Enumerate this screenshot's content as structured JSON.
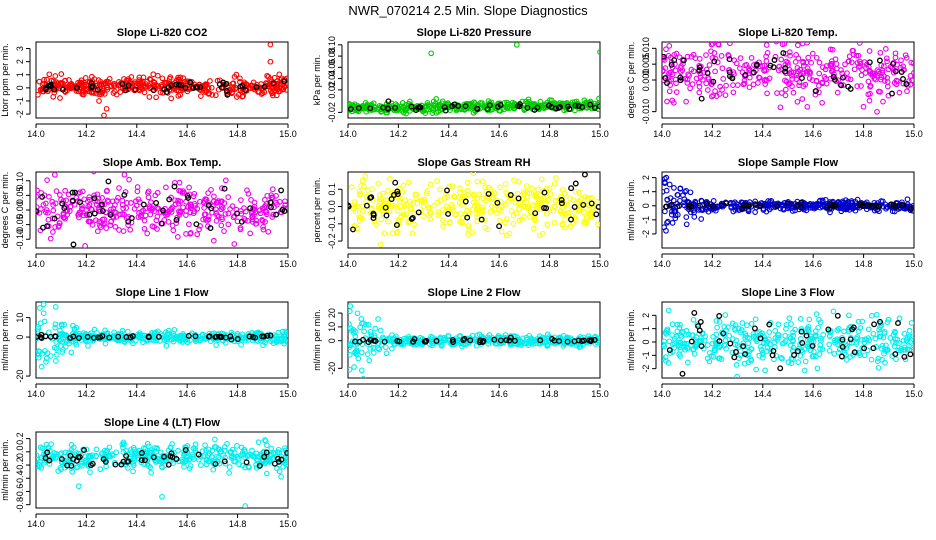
{
  "figure_title": "NWR_070214  2.5 Min. Slope Diagnostics",
  "chart_data": [
    {
      "type": "scatter",
      "title": "Slope Li-820 CO2",
      "ylabel": "Ltorr ppm per min.",
      "xlim": [
        14.0,
        15.0
      ],
      "ylim": [
        -2.3,
        3.5
      ],
      "xticks": [
        "14.0",
        "14.2",
        "14.4",
        "14.6",
        "14.8",
        "15.0"
      ],
      "yticks": [
        {
          "v": -2,
          "label": "-2"
        },
        {
          "v": -1,
          "label": "-1"
        },
        {
          "v": 0,
          "label": "0"
        },
        {
          "v": 1,
          "label": "1"
        },
        {
          "v": 2,
          "label": "2"
        },
        {
          "v": 3,
          "label": "3"
        }
      ],
      "series": [
        {
          "name": "all",
          "color": "#ff0000",
          "n": 420,
          "center": 0.1,
          "spread": 0.35,
          "outliers": [
            [
              14.93,
              3.3
            ],
            [
              14.93,
              2.0
            ],
            [
              14.27,
              -2.1
            ],
            [
              14.28,
              -1.6
            ],
            [
              14.25,
              -1.0
            ],
            [
              14.45,
              -0.7
            ]
          ]
        },
        {
          "name": "selected",
          "color": "#000000",
          "n": 45,
          "center": 0.05,
          "spread": 0.2,
          "outliers": []
        }
      ]
    },
    {
      "type": "scatter",
      "title": "Slope Li-820 Pressure",
      "ylabel": "kPa per min.",
      "xlim": [
        14.0,
        15.0
      ],
      "ylim": [
        -0.03,
        0.105
      ],
      "xticks": [
        "14.0",
        "14.2",
        "14.4",
        "14.6",
        "14.8",
        "15.0"
      ],
      "yticks": [
        {
          "v": -0.02,
          "label": "-0.02"
        },
        {
          "v": 0.02,
          "label": "0.02"
        },
        {
          "v": 0.04,
          "label": "0.04"
        },
        {
          "v": 0.06,
          "label": "0.06"
        },
        {
          "v": 0.08,
          "label": "0.08"
        },
        {
          "v": 0.1,
          "label": "0.10"
        }
      ],
      "series": [
        {
          "name": "all",
          "color": "#00cc00",
          "n": 420,
          "center": -0.013,
          "spread": 0.004,
          "trend": 0.006,
          "outliers": [
            [
              14.33,
              0.085
            ],
            [
              14.67,
              0.1
            ],
            [
              15.0,
              0.087
            ],
            [
              14.5,
              -0.002
            ]
          ]
        },
        {
          "name": "selected",
          "color": "#000000",
          "n": 45,
          "center": -0.014,
          "spread": 0.003,
          "trend": 0.006,
          "outliers": []
        }
      ]
    },
    {
      "type": "scatter",
      "title": "Slope Li-820 Temp.",
      "ylabel": "degrees C per min.",
      "xlim": [
        14.0,
        15.0
      ],
      "ylim": [
        -0.012,
        0.012
      ],
      "xticks": [
        "14.0",
        "14.2",
        "14.4",
        "14.6",
        "14.8",
        "15.0"
      ],
      "yticks": [
        {
          "v": -0.01,
          "label": "-0.010"
        },
        {
          "v": 0.0,
          "label": "0.000"
        },
        {
          "v": 0.005,
          "label": "0.005"
        },
        {
          "v": 0.01,
          "label": "0.010"
        }
      ],
      "series": [
        {
          "name": "all",
          "color": "#ee00ee",
          "n": 380,
          "center": 0.003,
          "spread": 0.0045,
          "outliers": []
        },
        {
          "name": "selected",
          "color": "#000000",
          "n": 45,
          "center": 0.003,
          "spread": 0.004,
          "outliers": []
        }
      ]
    },
    {
      "type": "scatter",
      "title": "Slope Amb. Box Temp.",
      "ylabel": "degrees C per min.",
      "xlim": [
        14.0,
        15.0
      ],
      "ylim": [
        -0.13,
        0.13
      ],
      "xticks": [
        "14.0",
        "14.2",
        "14.4",
        "14.6",
        "14.8",
        "15.0"
      ],
      "yticks": [
        {
          "v": -0.1,
          "label": "-0.10"
        },
        {
          "v": -0.05,
          "label": "-0.05"
        },
        {
          "v": 0.0,
          "label": "0.00"
        },
        {
          "v": 0.05,
          "label": "0.05"
        },
        {
          "v": 0.1,
          "label": "0.10"
        }
      ],
      "series": [
        {
          "name": "all",
          "color": "#ee00ee",
          "n": 380,
          "center": 0.0,
          "spread": 0.045,
          "outliers": []
        },
        {
          "name": "selected",
          "color": "#000000",
          "n": 45,
          "center": 0.0,
          "spread": 0.04,
          "outliers": []
        }
      ]
    },
    {
      "type": "scatter",
      "title": "Slope Gas Stream RH",
      "ylabel": "percent per min.",
      "xlim": [
        14.0,
        15.0
      ],
      "ylim": [
        -0.24,
        0.2
      ],
      "xticks": [
        "14.0",
        "14.2",
        "14.4",
        "14.6",
        "14.8",
        "15.0"
      ],
      "yticks": [
        {
          "v": -0.2,
          "label": "-0.2"
        },
        {
          "v": -0.1,
          "label": "-0.1"
        },
        {
          "v": 0.0,
          "label": "0.0"
        },
        {
          "v": 0.1,
          "label": "0.1"
        }
      ],
      "series": [
        {
          "name": "all",
          "color": "#ffff00",
          "n": 380,
          "center": 0.0,
          "spread": 0.07,
          "outliers": [
            [
              14.13,
              -0.22
            ]
          ]
        },
        {
          "name": "selected",
          "color": "#000000",
          "n": 45,
          "center": 0.0,
          "spread": 0.07,
          "outliers": []
        }
      ]
    },
    {
      "type": "scatter",
      "title": "Slope Sample Flow",
      "ylabel": "ml/min per min.",
      "xlim": [
        14.0,
        15.0
      ],
      "ylim": [
        -3.0,
        2.4
      ],
      "xticks": [
        "14.0",
        "14.2",
        "14.4",
        "14.6",
        "14.8",
        "15.0"
      ],
      "yticks": [
        {
          "v": -2,
          "label": "-2"
        },
        {
          "v": -1,
          "label": "-1"
        },
        {
          "v": 0,
          "label": "0"
        },
        {
          "v": 1,
          "label": "1"
        },
        {
          "v": 2,
          "label": "2"
        }
      ],
      "series": [
        {
          "name": "all",
          "color": "#0000cc",
          "n": 420,
          "center": 0.0,
          "spread": 0.18,
          "early": [
            14.0,
            14.2,
            1.1
          ],
          "outliers": []
        },
        {
          "name": "selected",
          "color": "#000000",
          "n": 45,
          "center": 0.0,
          "spread": 0.1,
          "outliers": []
        }
      ]
    },
    {
      "type": "scatter",
      "title": "Slope Line 1 Flow",
      "ylabel": "ml/min per min.",
      "xlim": [
        14.0,
        15.0
      ],
      "ylim": [
        -21,
        18
      ],
      "xticks": [
        "14.0",
        "14.2",
        "14.4",
        "14.6",
        "14.8",
        "15.0"
      ],
      "yticks": [
        {
          "v": -20,
          "label": "-20"
        },
        {
          "v": 0,
          "label": "0"
        },
        {
          "v": 10,
          "label": "10"
        }
      ],
      "series": [
        {
          "name": "all",
          "color": "#00eeee",
          "n": 420,
          "center": 0.0,
          "spread": 1.5,
          "early": [
            14.0,
            14.2,
            10
          ],
          "outliers": []
        },
        {
          "name": "selected",
          "color": "#000000",
          "n": 45,
          "center": 0.0,
          "spread": 0.5,
          "outliers": []
        }
      ]
    },
    {
      "type": "scatter",
      "title": "Slope Line 2 Flow",
      "ylabel": "ml/min per min.",
      "xlim": [
        14.0,
        15.0
      ],
      "ylim": [
        -27,
        28
      ],
      "xticks": [
        "14.0",
        "14.2",
        "14.4",
        "14.6",
        "14.8",
        "15.0"
      ],
      "yticks": [
        {
          "v": -20,
          "label": "-20"
        },
        {
          "v": 0,
          "label": "0"
        },
        {
          "v": 10,
          "label": "10"
        },
        {
          "v": 20,
          "label": "20"
        }
      ],
      "series": [
        {
          "name": "all",
          "color": "#00eeee",
          "n": 420,
          "center": 0.0,
          "spread": 1.8,
          "early": [
            14.0,
            14.2,
            14
          ],
          "outliers": []
        },
        {
          "name": "selected",
          "color": "#000000",
          "n": 45,
          "center": 0.0,
          "spread": 0.7,
          "outliers": []
        }
      ]
    },
    {
      "type": "scatter",
      "title": "Slope Line 3 Flow",
      "ylabel": "ml/min per min.",
      "xlim": [
        14.0,
        15.0
      ],
      "ylim": [
        -2.7,
        3.0
      ],
      "xticks": [
        "14.0",
        "14.2",
        "14.4",
        "14.6",
        "14.8",
        "15.0"
      ],
      "yticks": [
        {
          "v": -2,
          "label": "-2"
        },
        {
          "v": -1,
          "label": "-1"
        },
        {
          "v": 0,
          "label": "0"
        },
        {
          "v": 1,
          "label": "1"
        },
        {
          "v": 2,
          "label": "2"
        }
      ],
      "series": [
        {
          "name": "all",
          "color": "#00eeee",
          "n": 400,
          "center": 0.0,
          "spread": 0.85,
          "outliers": []
        },
        {
          "name": "selected",
          "color": "#000000",
          "n": 45,
          "center": 0.0,
          "spread": 0.9,
          "outliers": []
        }
      ]
    },
    {
      "type": "scatter",
      "title": "Slope Line 4 (LT) Flow",
      "ylabel": "ml/min per min.",
      "xlim": [
        14.0,
        15.0
      ],
      "ylim": [
        -0.85,
        0.3
      ],
      "xticks": [
        "14.0",
        "14.2",
        "14.4",
        "14.6",
        "14.8",
        "15.0"
      ],
      "yticks": [
        {
          "v": -0.8,
          "label": "-0.8"
        },
        {
          "v": -0.6,
          "label": "-0.6"
        },
        {
          "v": -0.4,
          "label": "-0.4"
        },
        {
          "v": -0.2,
          "label": "-0.2"
        },
        {
          "v": 0.0,
          "label": "0.0"
        },
        {
          "v": 0.2,
          "label": "0.2"
        }
      ],
      "series": [
        {
          "name": "all",
          "color": "#00eeee",
          "n": 380,
          "center": -0.08,
          "spread": 0.1,
          "outliers": [
            [
              14.5,
              -0.68
            ],
            [
              14.83,
              -0.82
            ],
            [
              14.17,
              -0.52
            ]
          ]
        },
        {
          "name": "selected",
          "color": "#000000",
          "n": 45,
          "center": -0.1,
          "spread": 0.08,
          "outliers": []
        }
      ]
    }
  ]
}
